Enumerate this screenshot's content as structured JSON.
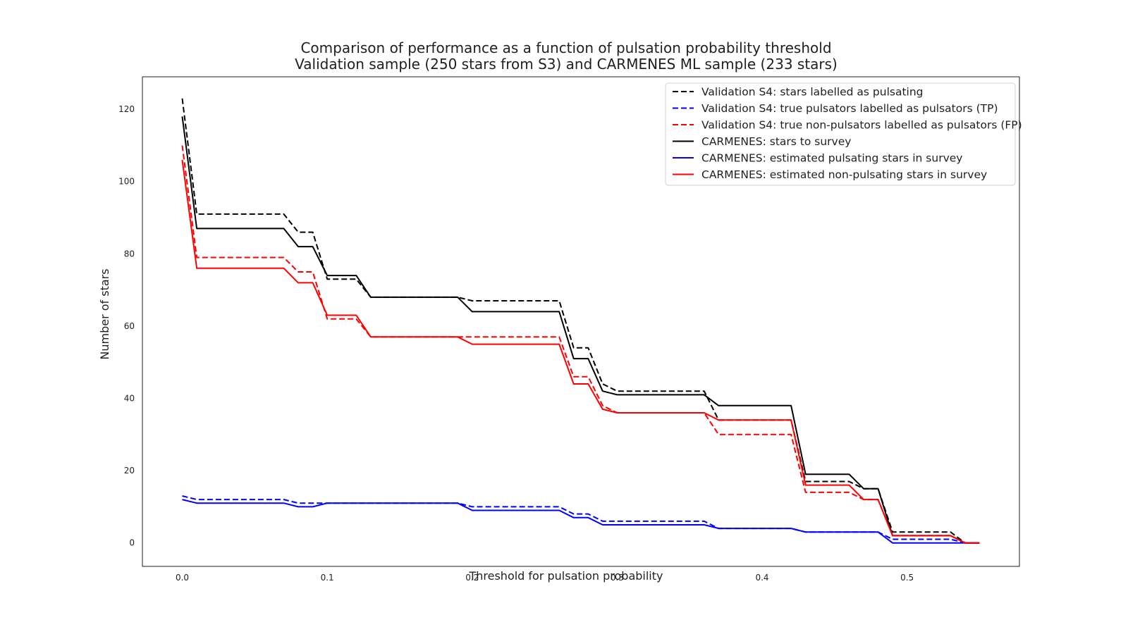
{
  "chart_data": {
    "type": "line",
    "title": "Comparison of performance as a function of pulsation probability threshold",
    "subtitle": "Validation sample (250 stars from S3) and CARMENES ML sample (233 stars)",
    "xlabel": "Threshold for pulsation probability",
    "ylabel": "Number of stars",
    "xlim": [
      -0.0275,
      0.5775
    ],
    "ylim": [
      -6.5,
      129
    ],
    "xticks": [
      0.0,
      0.1,
      0.2,
      0.3,
      0.4,
      0.5
    ],
    "xtick_labels": [
      "0.0",
      "0.1",
      "0.2",
      "0.3",
      "0.4",
      "0.5"
    ],
    "yticks": [
      0,
      20,
      40,
      60,
      80,
      100,
      120
    ],
    "ytick_labels": [
      "0",
      "20",
      "40",
      "60",
      "80",
      "100",
      "120"
    ],
    "grid": false,
    "legend_position": "top-right",
    "x": [
      0.0,
      0.01,
      0.02,
      0.03,
      0.04,
      0.05,
      0.06,
      0.07,
      0.08,
      0.09,
      0.1,
      0.11,
      0.12,
      0.13,
      0.14,
      0.15,
      0.16,
      0.17,
      0.18,
      0.19,
      0.2,
      0.21,
      0.22,
      0.23,
      0.24,
      0.25,
      0.26,
      0.27,
      0.28,
      0.29,
      0.3,
      0.31,
      0.32,
      0.33,
      0.34,
      0.35,
      0.36,
      0.37,
      0.38,
      0.39,
      0.4,
      0.41,
      0.42,
      0.43,
      0.44,
      0.45,
      0.46,
      0.47,
      0.48,
      0.49,
      0.5,
      0.51,
      0.52,
      0.53,
      0.54,
      0.55
    ],
    "series": [
      {
        "name": "Validation S4: stars labelled as pulsating",
        "color": "#000000",
        "style": "dashed",
        "values": [
          123,
          91,
          91,
          91,
          91,
          91,
          91,
          91,
          86,
          86,
          73,
          73,
          73,
          68,
          68,
          68,
          68,
          68,
          68,
          68,
          67,
          67,
          67,
          67,
          67,
          67,
          67,
          54,
          54,
          44,
          42,
          42,
          42,
          42,
          42,
          42,
          42,
          34,
          34,
          34,
          34,
          34,
          34,
          17,
          17,
          17,
          17,
          15,
          15,
          3,
          3,
          3,
          3,
          3,
          0,
          0
        ]
      },
      {
        "name": "Validation S4: true pulsators labelled as pulsators (TP)",
        "color": "#0000ff",
        "style": "dashed",
        "values": [
          13,
          12,
          12,
          12,
          12,
          12,
          12,
          12,
          11,
          11,
          11,
          11,
          11,
          11,
          11,
          11,
          11,
          11,
          11,
          11,
          10,
          10,
          10,
          10,
          10,
          10,
          10,
          8,
          8,
          6,
          6,
          6,
          6,
          6,
          6,
          6,
          6,
          4,
          4,
          4,
          4,
          4,
          4,
          3,
          3,
          3,
          3,
          3,
          3,
          1,
          1,
          1,
          1,
          1,
          0,
          0
        ]
      },
      {
        "name": "Validation S4: true non-pulsators labelled as pulsators (FP)",
        "color": "#ff0000",
        "style": "dashed",
        "values": [
          110,
          79,
          79,
          79,
          79,
          79,
          79,
          79,
          75,
          75,
          62,
          62,
          62,
          57,
          57,
          57,
          57,
          57,
          57,
          57,
          57,
          57,
          57,
          57,
          57,
          57,
          57,
          46,
          46,
          38,
          36,
          36,
          36,
          36,
          36,
          36,
          36,
          30,
          30,
          30,
          30,
          30,
          30,
          14,
          14,
          14,
          14,
          12,
          12,
          2,
          2,
          2,
          2,
          2,
          0,
          0
        ]
      },
      {
        "name": "CARMENES: stars to survey",
        "color": "#000000",
        "style": "solid",
        "values": [
          118,
          87,
          87,
          87,
          87,
          87,
          87,
          87,
          82,
          82,
          74,
          74,
          74,
          68,
          68,
          68,
          68,
          68,
          68,
          68,
          64,
          64,
          64,
          64,
          64,
          64,
          64,
          51,
          51,
          42,
          41,
          41,
          41,
          41,
          41,
          41,
          41,
          38,
          38,
          38,
          38,
          38,
          38,
          19,
          19,
          19,
          19,
          15,
          15,
          2,
          2,
          2,
          2,
          2,
          0,
          0
        ]
      },
      {
        "name": "CARMENES: estimated pulsating stars in survey",
        "color": "#0000ff",
        "style": "solid",
        "values": [
          12,
          11,
          11,
          11,
          11,
          11,
          11,
          11,
          10,
          10,
          11,
          11,
          11,
          11,
          11,
          11,
          11,
          11,
          11,
          11,
          9,
          9,
          9,
          9,
          9,
          9,
          9,
          7,
          7,
          5,
          5,
          5,
          5,
          5,
          5,
          5,
          5,
          4,
          4,
          4,
          4,
          4,
          4,
          3,
          3,
          3,
          3,
          3,
          3,
          0,
          0,
          0,
          0,
          0,
          0,
          0
        ]
      },
      {
        "name": "CARMENES: estimated non-pulsating stars in survey",
        "color": "#ff0000",
        "style": "solid",
        "values": [
          106,
          76,
          76,
          76,
          76,
          76,
          76,
          76,
          72,
          72,
          63,
          63,
          63,
          57,
          57,
          57,
          57,
          57,
          57,
          57,
          55,
          55,
          55,
          55,
          55,
          55,
          55,
          44,
          44,
          37,
          36,
          36,
          36,
          36,
          36,
          36,
          36,
          34,
          34,
          34,
          34,
          34,
          34,
          16,
          16,
          16,
          16,
          12,
          12,
          2,
          2,
          2,
          2,
          2,
          0,
          0
        ]
      }
    ]
  }
}
